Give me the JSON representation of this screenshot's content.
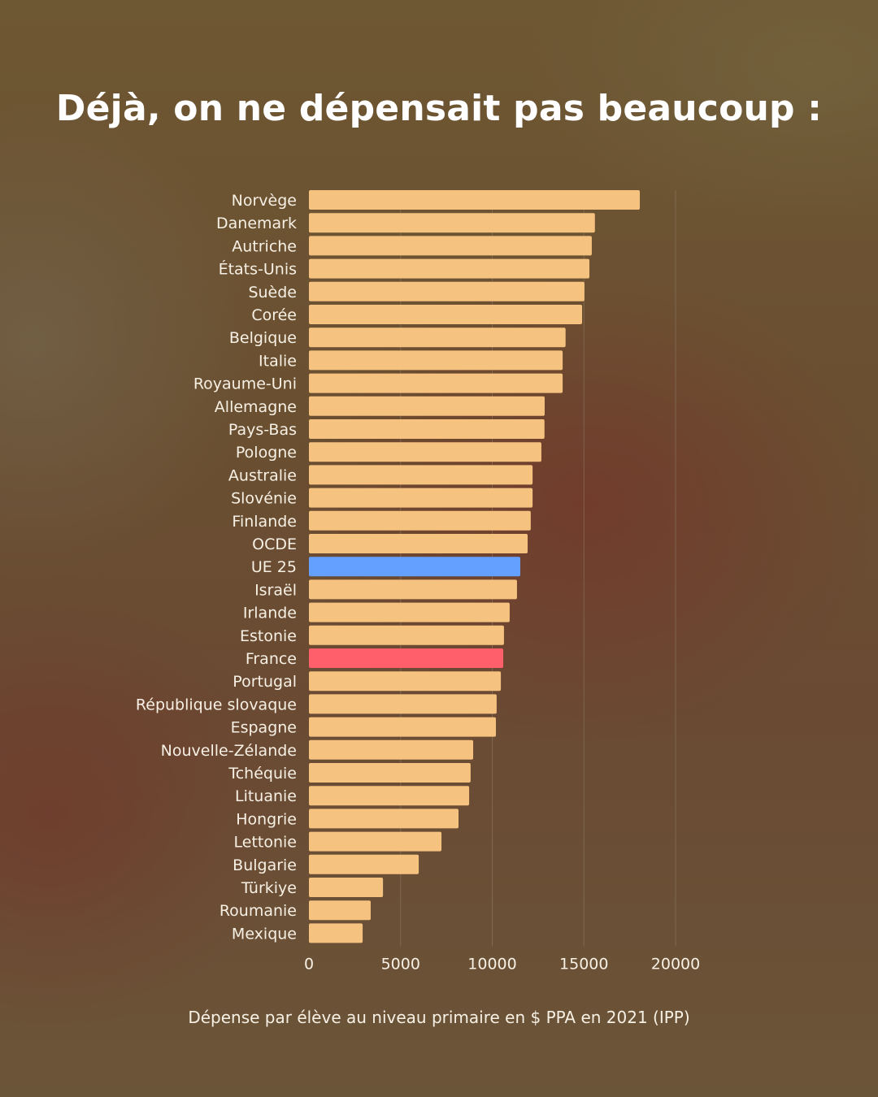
{
  "chart_data": {
    "type": "bar",
    "orientation": "horizontal",
    "title": "Déjà, on ne dépensait pas beaucoup :",
    "xlabel": "Dépense par élève au niveau primaire en $ PPA en 2021 (IPP)",
    "ylabel": "",
    "xlim": [
      0,
      20000
    ],
    "xticks": [
      0,
      5000,
      10000,
      15000,
      20000
    ],
    "grid": true,
    "legend": null,
    "colors": {
      "default": "#f5c27f",
      "UE 25": "#64a0ff",
      "France": "#ff5f6a",
      "grid": "#8a7a62"
    },
    "categories": [
      "Norvège",
      "Danemark",
      "Autriche",
      "États-Unis",
      "Suède",
      "Corée",
      "Belgique",
      "Italie",
      "Royaume-Uni",
      "Allemagne",
      "Pays-Bas",
      "Pologne",
      "Australie",
      "Slovénie",
      "Finlande",
      "OCDE",
      "UE 25",
      "Israël",
      "Irlande",
      "Estonie",
      "France",
      "Portugal",
      "République slovaque",
      "Espagne",
      "Nouvelle-Zélande",
      "Tchéquie",
      "Lituanie",
      "Hongrie",
      "Lettonie",
      "Bulgarie",
      "Türkiye",
      "Roumanie",
      "Mexique"
    ],
    "values": [
      18050,
      15600,
      15430,
      15300,
      15030,
      14900,
      14000,
      13840,
      13840,
      12860,
      12850,
      12680,
      12200,
      12200,
      12100,
      11930,
      11530,
      11350,
      10950,
      10640,
      10600,
      10470,
      10240,
      10200,
      8960,
      8820,
      8740,
      8160,
      7230,
      5990,
      4040,
      3370,
      2930
    ]
  }
}
